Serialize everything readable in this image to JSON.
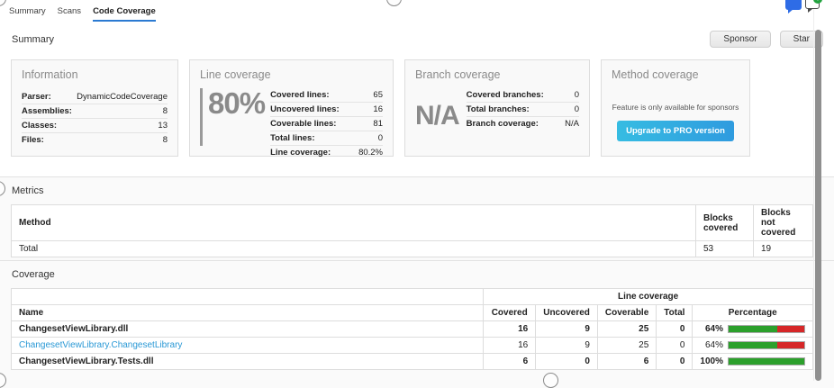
{
  "tabs": [
    {
      "label": "Summary",
      "active": false
    },
    {
      "label": "Scans",
      "active": false
    },
    {
      "label": "Code Coverage",
      "active": true
    }
  ],
  "summary_section": {
    "title": "Summary",
    "sponsor_label": "Sponsor",
    "star_label": "Star",
    "cards": {
      "information": {
        "title": "Information",
        "rows": [
          {
            "label": "Parser:",
            "value": "DynamicCodeCoverage"
          },
          {
            "label": "Assemblies:",
            "value": "8"
          },
          {
            "label": "Classes:",
            "value": "13"
          },
          {
            "label": "Files:",
            "value": "8"
          }
        ]
      },
      "line_coverage": {
        "title": "Line coverage",
        "big_value": "80%",
        "rows": [
          {
            "label": "Covered lines:",
            "value": "65"
          },
          {
            "label": "Uncovered lines:",
            "value": "16"
          },
          {
            "label": "Coverable lines:",
            "value": "81"
          },
          {
            "label": "Total lines:",
            "value": "0"
          },
          {
            "label": "Line coverage:",
            "value": "80.2%"
          }
        ]
      },
      "branch_coverage": {
        "title": "Branch coverage",
        "big_value": "N/A",
        "rows": [
          {
            "label": "Covered branches:",
            "value": "0"
          },
          {
            "label": "Total branches:",
            "value": "0"
          },
          {
            "label": "Branch coverage:",
            "value": "N/A"
          }
        ]
      },
      "method_coverage": {
        "title": "Method coverage",
        "note": "Feature is only available for sponsors",
        "button_label": "Upgrade to PRO version"
      }
    }
  },
  "metrics_section": {
    "title": "Metrics",
    "table": {
      "headers": [
        "Method",
        "Blocks covered",
        "Blocks not covered"
      ],
      "rows": [
        {
          "method": "Total",
          "blocks_covered": "53",
          "blocks_not_covered": "19"
        }
      ]
    }
  },
  "coverage_section": {
    "title": "Coverage",
    "table": {
      "group_header": "Line coverage",
      "headers": [
        "Name",
        "Covered",
        "Uncovered",
        "Coverable",
        "Total",
        "Percentage"
      ],
      "rows": [
        {
          "name": "ChangesetViewLibrary.dll",
          "covered": "16",
          "uncovered": "9",
          "coverable": "25",
          "total": "0",
          "percentage": "64%",
          "percent_value": 64
        },
        {
          "name": "ChangesetViewLibrary.ChangesetLibrary",
          "covered": "16",
          "uncovered": "9",
          "coverable": "25",
          "total": "0",
          "percentage": "64%",
          "percent_value": 64
        },
        {
          "name": "ChangesetViewLibrary.Tests.dll",
          "covered": "6",
          "uncovered": "0",
          "coverable": "6",
          "total": "0",
          "percentage": "100%",
          "percent_value": 100
        }
      ]
    }
  },
  "icons": {
    "discussion": "chat-bubble-icon",
    "add_comment": "add-comment-icon"
  },
  "colors": {
    "accent_blue": "#2b7ad2",
    "link_blue": "#2998d5",
    "bar_green": "#2ca02c",
    "bar_red": "#d62728",
    "button_gradient_start": "#36bce2",
    "button_gradient_end": "#2f9bdf"
  }
}
